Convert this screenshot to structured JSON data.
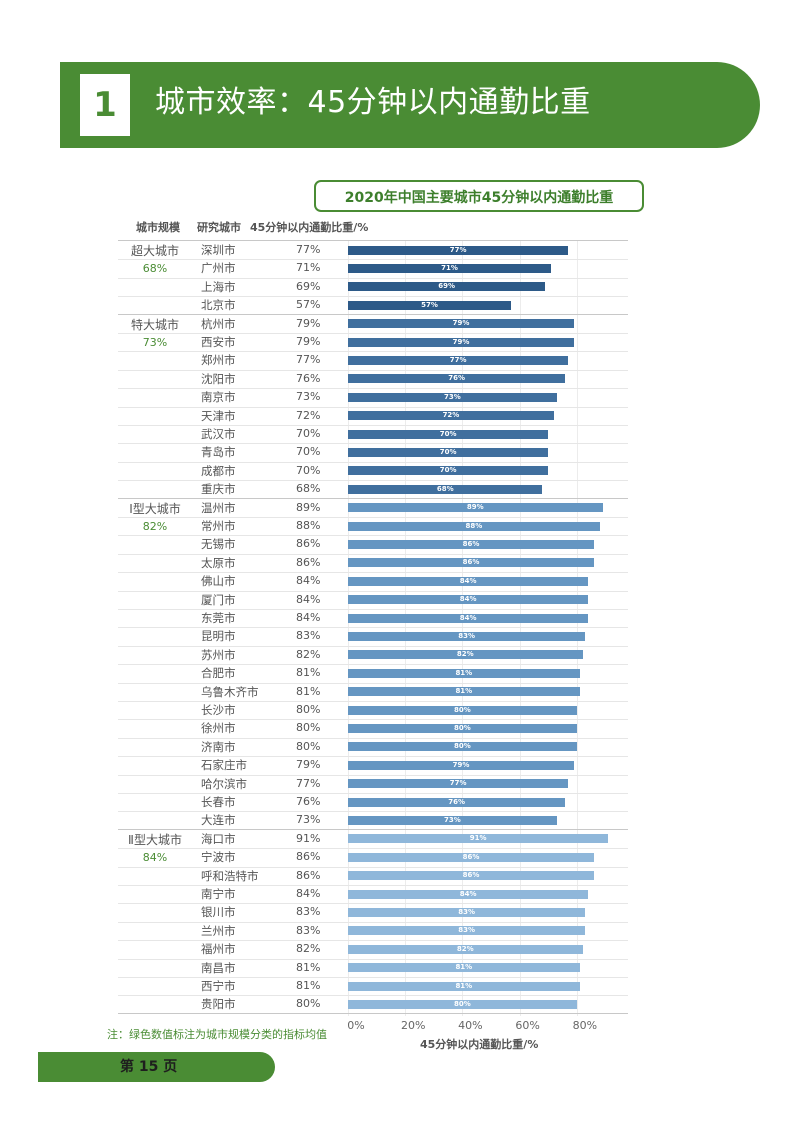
{
  "header": {
    "number": "1",
    "title": "城市效率：45分钟以内通勤比重"
  },
  "chart_data": {
    "type": "bar",
    "title": "2020年中国主要城市45分钟以内通勤比重",
    "col_headers": {
      "scale": "城市规模",
      "city": "研究城市",
      "value": "45分钟以内通勤比重/%"
    },
    "xlabel": "45分钟以内通勤比重/%",
    "xlim": [
      0,
      92
    ],
    "xticks": [
      "0%",
      "20%",
      "40%",
      "60%",
      "80%"
    ],
    "xtick_values": [
      0,
      20,
      40,
      60,
      80
    ],
    "groups": [
      {
        "name": "超大城市",
        "avg": "68%",
        "color": "#2d5a88",
        "cities": [
          {
            "name": "深圳市",
            "value": 77
          },
          {
            "name": "广州市",
            "value": 71
          },
          {
            "name": "上海市",
            "value": 69
          },
          {
            "name": "北京市",
            "value": 57
          }
        ]
      },
      {
        "name": "特大城市",
        "avg": "73%",
        "color": "#406f9e",
        "cities": [
          {
            "name": "杭州市",
            "value": 79
          },
          {
            "name": "西安市",
            "value": 79
          },
          {
            "name": "郑州市",
            "value": 77
          },
          {
            "name": "沈阳市",
            "value": 76
          },
          {
            "name": "南京市",
            "value": 73
          },
          {
            "name": "天津市",
            "value": 72
          },
          {
            "name": "武汉市",
            "value": 70
          },
          {
            "name": "青岛市",
            "value": 70
          },
          {
            "name": "成都市",
            "value": 70
          },
          {
            "name": "重庆市",
            "value": 68
          }
        ]
      },
      {
        "name": "Ⅰ型大城市",
        "avg": "82%",
        "color": "#6596c2",
        "cities": [
          {
            "name": "温州市",
            "value": 89
          },
          {
            "name": "常州市",
            "value": 88
          },
          {
            "name": "无锡市",
            "value": 86
          },
          {
            "name": "太原市",
            "value": 86
          },
          {
            "name": "佛山市",
            "value": 84
          },
          {
            "name": "厦门市",
            "value": 84
          },
          {
            "name": "东莞市",
            "value": 84
          },
          {
            "name": "昆明市",
            "value": 83
          },
          {
            "name": "苏州市",
            "value": 82
          },
          {
            "name": "合肥市",
            "value": 81
          },
          {
            "name": "乌鲁木齐市",
            "value": 81
          },
          {
            "name": "长沙市",
            "value": 80
          },
          {
            "name": "徐州市",
            "value": 80
          },
          {
            "name": "济南市",
            "value": 80
          },
          {
            "name": "石家庄市",
            "value": 79
          },
          {
            "name": "哈尔滨市",
            "value": 77
          },
          {
            "name": "长春市",
            "value": 76
          },
          {
            "name": "大连市",
            "value": 73
          }
        ]
      },
      {
        "name": "Ⅱ型大城市",
        "avg": "84%",
        "color": "#8fb7da",
        "cities": [
          {
            "name": "海口市",
            "value": 91
          },
          {
            "name": "宁波市",
            "value": 86
          },
          {
            "name": "呼和浩特市",
            "value": 86
          },
          {
            "name": "南宁市",
            "value": 84
          },
          {
            "name": "银川市",
            "value": 83
          },
          {
            "name": "兰州市",
            "value": 83
          },
          {
            "name": "福州市",
            "value": 82
          },
          {
            "name": "南昌市",
            "value": 81
          },
          {
            "name": "西宁市",
            "value": 81
          },
          {
            "name": "贵阳市",
            "value": 80
          }
        ]
      }
    ]
  },
  "note": "注：绿色数值标注为城市规模分类的指标均值",
  "footer": {
    "page_label": "第 15 页"
  }
}
